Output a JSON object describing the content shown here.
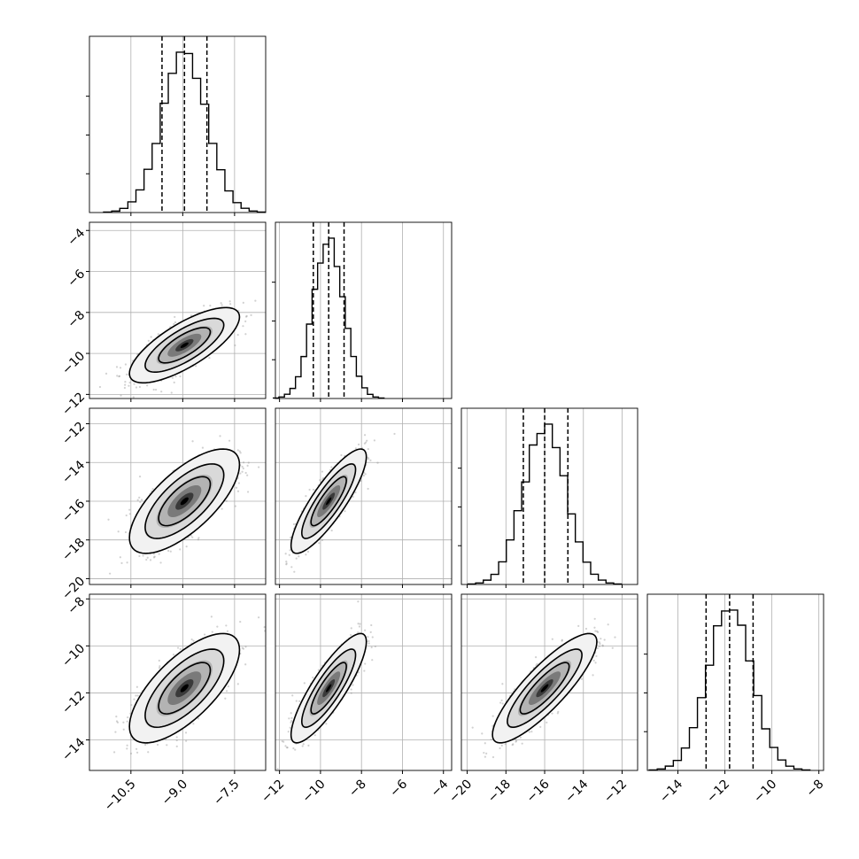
{
  "chart_data": {
    "type": "corner",
    "description_hidden": false,
    "n_parameters": 4,
    "parameters": [
      {
        "label": "",
        "range": [
          -11.7,
          -6.6
        ],
        "ticks": [
          -10.5,
          -9.0,
          -7.5
        ],
        "tick_labels": [
          "−10.5",
          "−9.0",
          "−7.5"
        ],
        "mean": -8.95,
        "sd": 0.65,
        "quantiles": [
          -9.6,
          -8.95,
          -8.3
        ]
      },
      {
        "label": "",
        "range": [
          -12.2,
          -3.6
        ],
        "ticks": [
          -12,
          -10,
          -8,
          -6,
          -4
        ],
        "tick_labels": [
          "−12",
          "−10",
          "−8",
          "−6",
          "−4"
        ],
        "mean": -9.6,
        "sd": 0.75,
        "quantiles": [
          -10.35,
          -9.6,
          -8.85
        ]
      },
      {
        "label": "",
        "range": [
          -20.3,
          -11.2
        ],
        "ticks": [
          -20,
          -18,
          -16,
          -14,
          -12
        ],
        "tick_labels": [
          "−20",
          "−18",
          "−16",
          "−14",
          "−12"
        ],
        "mean": -16.0,
        "sd": 1.1,
        "quantiles": [
          -17.1,
          -16.0,
          -14.8
        ]
      },
      {
        "label": "",
        "range": [
          -15.3,
          -7.8
        ],
        "ticks": [
          -14,
          -12,
          -10,
          -8
        ],
        "tick_labels": [
          "−14",
          "−12",
          "−10",
          "−8"
        ],
        "mean": -11.8,
        "sd": 0.95,
        "quantiles": [
          -12.8,
          -11.8,
          -10.8
        ]
      }
    ],
    "correlations": [
      [
        1.0,
        0.75,
        0.7,
        0.7
      ],
      [
        0.75,
        1.0,
        0.85,
        0.85
      ],
      [
        0.7,
        0.85,
        1.0,
        0.85
      ],
      [
        0.7,
        0.85,
        0.85,
        1.0
      ]
    ],
    "histogram_bins": 20,
    "contour_levels": 3,
    "grid": true,
    "quantile_line_style": "dashed",
    "colors": {
      "points": "#9a9a9a",
      "lines": "#000000",
      "grid": "#b0b0b0"
    }
  }
}
